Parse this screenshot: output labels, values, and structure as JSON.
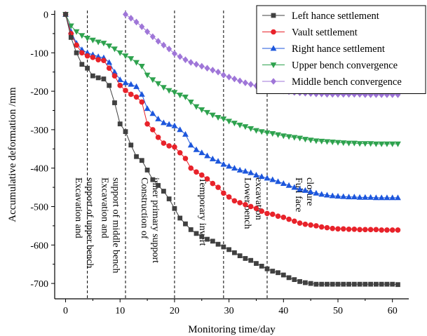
{
  "chart_data": {
    "type": "line",
    "xlabel": "Monitoring time/day",
    "ylabel": "Accumulative deformation /mm",
    "xlim": [
      -2,
      63
    ],
    "ylim": [
      -740,
      10
    ],
    "x_ticks": [
      0,
      10,
      20,
      30,
      40,
      50,
      60
    ],
    "y_ticks": [
      0,
      -100,
      -200,
      -300,
      -400,
      -500,
      -600,
      -700
    ],
    "legend_position": "top-right",
    "grid": false,
    "phase_lines": [
      4,
      11,
      20,
      29,
      37
    ],
    "phase_labels": [
      {
        "lines": [
          "Excavation and",
          "support of upper bench"
        ],
        "x_day": 0.2
      },
      {
        "lines": [
          "Excavation and",
          "support of middle bench"
        ],
        "x_day": 5.0
      },
      {
        "lines": [
          "Construction of",
          "inner primary support"
        ],
        "x_day": 12.3
      },
      {
        "lines": [
          "Temporary invert"
        ],
        "x_day": 23.0
      },
      {
        "lines": [
          "Lower bench",
          "excavation"
        ],
        "x_day": 31.2
      },
      {
        "lines": [
          "Full face",
          "closure"
        ],
        "x_day": 40.6
      }
    ],
    "series": [
      {
        "name": "Left hance settlement",
        "color": "#404040",
        "marker": "square",
        "x": [
          0,
          1,
          2,
          3,
          4,
          5,
          6,
          7,
          8,
          9,
          10,
          11,
          12,
          13,
          14,
          15,
          16,
          17,
          18,
          19,
          20,
          21,
          22,
          23,
          24,
          25,
          26,
          27,
          28,
          29,
          30,
          31,
          32,
          33,
          34,
          35,
          36,
          37,
          38,
          39,
          40,
          41,
          42,
          43,
          44,
          45,
          46,
          47,
          48,
          49,
          50,
          51,
          52,
          53,
          54,
          55,
          56,
          57,
          58,
          59,
          60,
          61
        ],
        "y": [
          0,
          -60,
          -100,
          -130,
          -140,
          -160,
          -165,
          -168,
          -185,
          -230,
          -285,
          -305,
          -340,
          -370,
          -380,
          -405,
          -430,
          -445,
          -460,
          -480,
          -505,
          -530,
          -545,
          -560,
          -570,
          -578,
          -585,
          -590,
          -598,
          -605,
          -612,
          -620,
          -628,
          -635,
          -640,
          -648,
          -655,
          -662,
          -668,
          -672,
          -678,
          -685,
          -690,
          -695,
          -698,
          -700,
          -702,
          -702,
          -702,
          -702,
          -702,
          -702,
          -702,
          -702,
          -702,
          -702,
          -702,
          -702,
          -702,
          -702,
          -702,
          -703
        ]
      },
      {
        "name": "Vault settlement",
        "color": "#e8222a",
        "marker": "circle",
        "x": [
          0,
          1,
          2,
          3,
          4,
          5,
          6,
          7,
          8,
          9,
          10,
          11,
          12,
          13,
          14,
          15,
          16,
          17,
          18,
          19,
          20,
          21,
          22,
          23,
          24,
          25,
          26,
          27,
          28,
          29,
          30,
          31,
          32,
          33,
          34,
          35,
          36,
          37,
          38,
          39,
          40,
          41,
          42,
          43,
          44,
          45,
          46,
          47,
          48,
          49,
          50,
          51,
          52,
          53,
          54,
          55,
          56,
          57,
          58,
          59,
          60,
          61
        ],
        "y": [
          0,
          -50,
          -80,
          -100,
          -108,
          -112,
          -118,
          -120,
          -140,
          -160,
          -185,
          -198,
          -208,
          -215,
          -228,
          -285,
          -300,
          -320,
          -335,
          -342,
          -345,
          -360,
          -375,
          -400,
          -410,
          -418,
          -428,
          -440,
          -450,
          -465,
          -475,
          -485,
          -490,
          -495,
          -500,
          -505,
          -512,
          -518,
          -520,
          -525,
          -528,
          -533,
          -538,
          -543,
          -546,
          -548,
          -550,
          -553,
          -555,
          -557,
          -558,
          -558,
          -559,
          -559,
          -560,
          -560,
          -560,
          -560,
          -561,
          -561,
          -561,
          -561
        ]
      },
      {
        "name": "Right hance settlement",
        "color": "#1c56dc",
        "marker": "triangle-up",
        "x": [
          0,
          1,
          2,
          3,
          4,
          5,
          6,
          7,
          8,
          9,
          10,
          11,
          12,
          13,
          14,
          15,
          16,
          17,
          18,
          19,
          20,
          21,
          22,
          23,
          24,
          25,
          26,
          27,
          28,
          29,
          30,
          31,
          32,
          33,
          34,
          35,
          36,
          37,
          38,
          39,
          40,
          41,
          42,
          43,
          44,
          45,
          46,
          47,
          48,
          49,
          50,
          51,
          52,
          53,
          54,
          55,
          56,
          57,
          58,
          59,
          60,
          61
        ],
        "y": [
          0,
          -45,
          -75,
          -92,
          -100,
          -105,
          -110,
          -113,
          -125,
          -150,
          -170,
          -178,
          -182,
          -188,
          -208,
          -245,
          -258,
          -272,
          -282,
          -286,
          -290,
          -300,
          -312,
          -340,
          -352,
          -360,
          -368,
          -376,
          -382,
          -390,
          -395,
          -400,
          -405,
          -408,
          -412,
          -418,
          -422,
          -426,
          -430,
          -435,
          -440,
          -445,
          -450,
          -455,
          -458,
          -462,
          -465,
          -468,
          -470,
          -472,
          -473,
          -474,
          -475,
          -475,
          -476,
          -476,
          -476,
          -477,
          -477,
          -477,
          -477,
          -477
        ]
      },
      {
        "name": "Upper bench convergence",
        "color": "#2ea24e",
        "marker": "triangle-down",
        "x": [
          0,
          1,
          2,
          3,
          4,
          5,
          6,
          7,
          8,
          9,
          10,
          11,
          12,
          13,
          14,
          15,
          16,
          17,
          18,
          19,
          20,
          21,
          22,
          23,
          24,
          25,
          26,
          27,
          28,
          29,
          30,
          31,
          32,
          33,
          34,
          35,
          36,
          37,
          38,
          39,
          40,
          41,
          42,
          43,
          44,
          45,
          46,
          47,
          48,
          49,
          50,
          51,
          52,
          53,
          54,
          55,
          56,
          57,
          58,
          59,
          60,
          61
        ],
        "y": [
          0,
          -30,
          -45,
          -55,
          -62,
          -67,
          -72,
          -75,
          -82,
          -90,
          -100,
          -108,
          -115,
          -125,
          -135,
          -158,
          -170,
          -180,
          -190,
          -198,
          -203,
          -210,
          -215,
          -228,
          -240,
          -248,
          -255,
          -262,
          -268,
          -272,
          -278,
          -283,
          -288,
          -292,
          -297,
          -302,
          -305,
          -308,
          -310,
          -313,
          -316,
          -318,
          -320,
          -322,
          -325,
          -327,
          -329,
          -330,
          -331,
          -332,
          -333,
          -334,
          -335,
          -335,
          -336,
          -336,
          -336,
          -337,
          -337,
          -337,
          -337,
          -337
        ]
      },
      {
        "name": "Middle bench convergence",
        "color": "#9f76d8",
        "marker": "diamond",
        "x": [
          11,
          12,
          13,
          14,
          15,
          16,
          17,
          18,
          19,
          20,
          21,
          22,
          23,
          24,
          25,
          26,
          27,
          28,
          29,
          30,
          31,
          32,
          33,
          34,
          35,
          36,
          37,
          38,
          39,
          40,
          41,
          42,
          43,
          44,
          45,
          46,
          47,
          48,
          49,
          50,
          51,
          52,
          53,
          54,
          55,
          56,
          57,
          58,
          59,
          60,
          61
        ],
        "y": [
          0,
          -10,
          -20,
          -32,
          -45,
          -58,
          -70,
          -80,
          -90,
          -102,
          -110,
          -118,
          -125,
          -130,
          -135,
          -140,
          -145,
          -150,
          -158,
          -163,
          -168,
          -173,
          -178,
          -182,
          -186,
          -190,
          -192,
          -195,
          -197,
          -199,
          -201,
          -203,
          -204,
          -205,
          -206,
          -207,
          -207,
          -208,
          -208,
          -208,
          -208,
          -208,
          -208,
          -208,
          -209,
          -209,
          -209,
          -209,
          -209,
          -209,
          -209
        ]
      }
    ]
  }
}
